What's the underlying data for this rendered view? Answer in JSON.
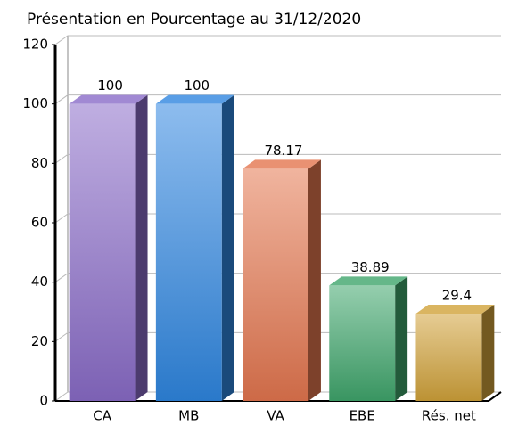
{
  "chart_data": {
    "type": "bar3d",
    "title": "Présentation en Pourcentage au 31/12/2020",
    "categories": [
      "CA",
      "MB",
      "VA",
      "EBE",
      "Rés. net"
    ],
    "values": [
      100,
      100,
      78.17,
      38.89,
      29.4
    ],
    "colors": [
      "#8a6cc8",
      "#2f86e0",
      "#e4764f",
      "#3fa56c",
      "#d1a23a"
    ],
    "ylim": [
      0,
      120
    ],
    "yticks": [
      0,
      20,
      40,
      60,
      80,
      100,
      120
    ],
    "grid": true
  }
}
